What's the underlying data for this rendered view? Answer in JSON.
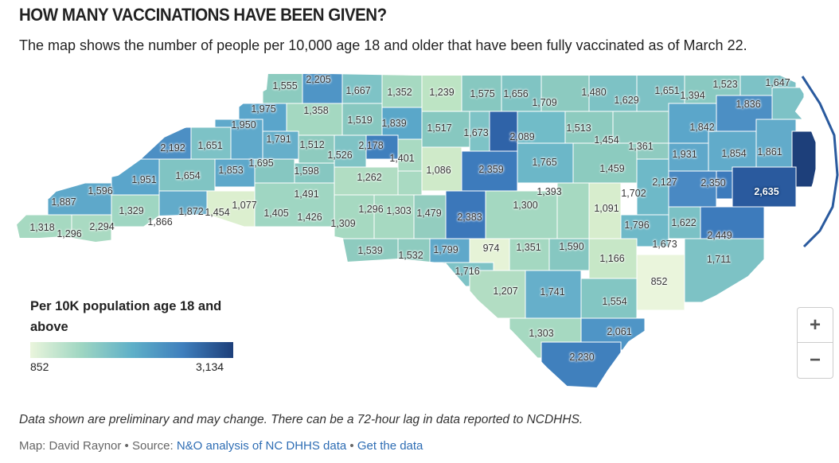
{
  "header": {
    "title": "HOW MANY VACCINATIONS HAVE BEEN GIVEN?",
    "subtitle": "The map shows the number of people per 10,000 age 18 and older that have been fully vaccinated as of March 22."
  },
  "legend": {
    "title": "Per 10K population age 18 and above",
    "min": "852",
    "max": "3,134",
    "colors": [
      "#eaf5dc",
      "#9fd6c2",
      "#5fb0c8",
      "#3f7fbd",
      "#1d3f7a"
    ]
  },
  "zoom": {
    "in_label": "+",
    "out_label": "−"
  },
  "footer": {
    "note": "Data shown are preliminary and may change. There can be a 72-hour lag in data reported to NCDHHS.",
    "credit_prefix": "Map: David Raynor • Source: ",
    "source_link": "N&O analysis of NC DHHS data",
    "separator": " • ",
    "data_link": "Get the data"
  },
  "map": {
    "county_values": [
      "1,555",
      "2,205",
      "1,667",
      "1,352",
      "1,239",
      "1,575",
      "1,656",
      "1,480",
      "1,651",
      "1,523",
      "1,647",
      "1,975",
      "1,358",
      "1,709",
      "1,629",
      "1,394",
      "1,836",
      "1,950",
      "1,519",
      "1,839",
      "1,517",
      "1,673",
      "2,089",
      "1,513",
      "1,842",
      "1,791",
      "1,512",
      "2,178",
      "1,454",
      "1,361",
      "2,192",
      "1,651",
      "1,526",
      "1,401",
      "1,931",
      "1,854",
      "1,861",
      "1,695",
      "1,853",
      "1,765",
      "1,951",
      "1,654",
      "1,598",
      "1,262",
      "1,086",
      "2,359",
      "1,459",
      "2,127",
      "2,350",
      "1,596",
      "1,491",
      "1,393",
      "1,702",
      "2,635",
      "1,887",
      "1,077",
      "1,296",
      "1,303",
      "1,479",
      "2,383",
      "1,300",
      "1,091",
      "1,329",
      "1,872",
      "1,454",
      "1,405",
      "1,426",
      "1,309",
      "1,796",
      "1,622",
      "1,318",
      "1,296",
      "2,294",
      "1,866",
      "2,449",
      "1,673",
      "1,539",
      "1,532",
      "1,799",
      "974",
      "1,351",
      "1,590",
      "1,166",
      "1,711",
      "1,716",
      "852",
      "1,207",
      "1,741",
      "1,554",
      "1,303",
      "2,061",
      "2,230"
    ]
  }
}
